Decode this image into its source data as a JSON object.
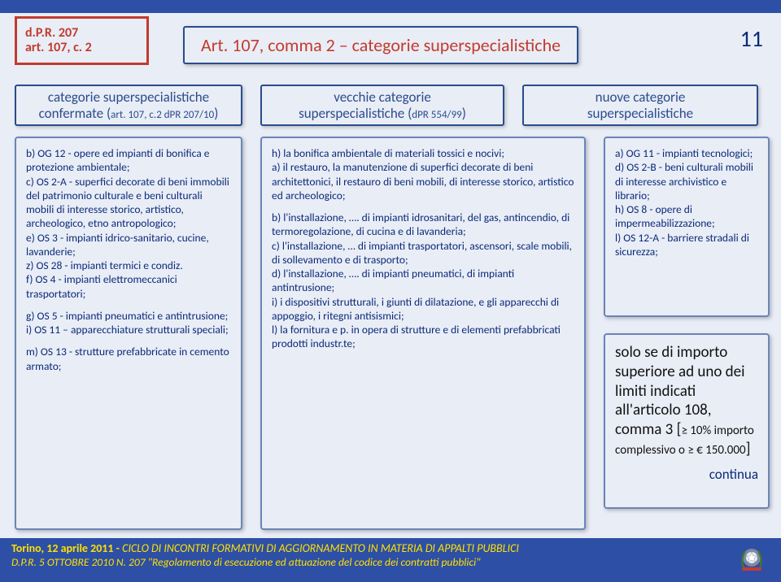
{
  "colors": {
    "slide_bg": "#2d4fa6",
    "panel_bg": "#e9edf6",
    "panel_border": "#a8b8d8",
    "chip_border": "#c23b2e",
    "title_text": "#c23b2e",
    "subhdr_text": "#2a4c8c",
    "body_text": "#0a2a78",
    "footer_bg": "#2d4fa6",
    "footer_text": "#ffe000"
  },
  "page_number": "11",
  "ref": {
    "l1": "d.P.R. 207",
    "l2": "art. 107, c. 2"
  },
  "title": "Art. 107, comma 2 – categorie superspecialistiche",
  "subheaders": {
    "s1": {
      "l1": "categorie superspecialistiche",
      "l2": "confermate (art. 107, c.2 dPR 207/10)"
    },
    "s2": {
      "l1": "vecchie categorie",
      "l2": "superspecialistiche (dPR 554/99)"
    },
    "s3": {
      "l1": "nuove categorie",
      "l2": "superspecialistiche"
    }
  },
  "col_left": {
    "p1": "b) OG 12 - opere ed impianti di bonifica e protezione ambientale;\nc) OS 2-A - superfici decorate di beni immobili del patrimonio culturale e beni culturali mobili di interesse storico, artistico, archeologico, etno antropologico;\ne) OS 3 - impianti idrico-sanitario, cucine, lavanderie;\nz) OS 28 - impianti termici e condiz.\nf) OS 4 - impianti elettromeccanici trasportatori;",
    "p2": "g) OS 5 - impianti pneumatici e antintrusione;\ni) OS 11 – apparecchiature strutturali speciali;",
    "p3": "m) OS 13 - strutture prefabbricate in cemento armato;"
  },
  "col_mid": {
    "p1": "h) la bonifica ambientale di materiali tossici e nocivi;\na) il restauro, la manutenzione di superfici decorate di beni architettonici, il restauro di beni mobili, di interesse storico, artistico ed archeologico;",
    "p2": "b) l'installazione, …. di impianti idrosanitari, del gas, antincendio, di termoregolazione, di cucina e di lavanderia;\nc) l'installazione, … di impianti trasportatori, ascensori, scale mobili, di sollevamento e di trasporto;\nd) l'installazione, …. di impianti pneumatici, di impianti antintrusione;\ni) i dispositivi strutturali, i giunti di dilatazione, e gli apparecchi di appoggio, i ritegni antisismici;\nl) la fornitura e p. in opera di strutture e di elementi prefabbricati prodotti industr.te;"
  },
  "col_right_top": "a) OG 11 - impianti tecnologici;\nd) OS 2-B - beni culturali mobili di interesse archivistico e librario;\nh) OS 8 - opere di impermeabilizzazione;\nl) OS 12-A - barriere stradali di sicurezza;",
  "col_right_bot": {
    "text": "solo se di importo superiore ad uno dei limiti indicati all'articolo 108, comma 3 [≥ 10% importo complessivo o ≥ € 150.000]",
    "continua": "continua"
  },
  "footer": {
    "l1a": "Torino, 12 aprile 2011 - ",
    "l1b": "CICLO DI INCONTRI FORMATIVI DI AGGIORNAMENTO IN MATERIA DI APPALTI PUBBLICI",
    "l2": "D.P.R. 5 OTTOBRE 2010 N. 207 \"Regolamento di esecuzione ed attuazione del codice dei contratti pubblici\""
  }
}
